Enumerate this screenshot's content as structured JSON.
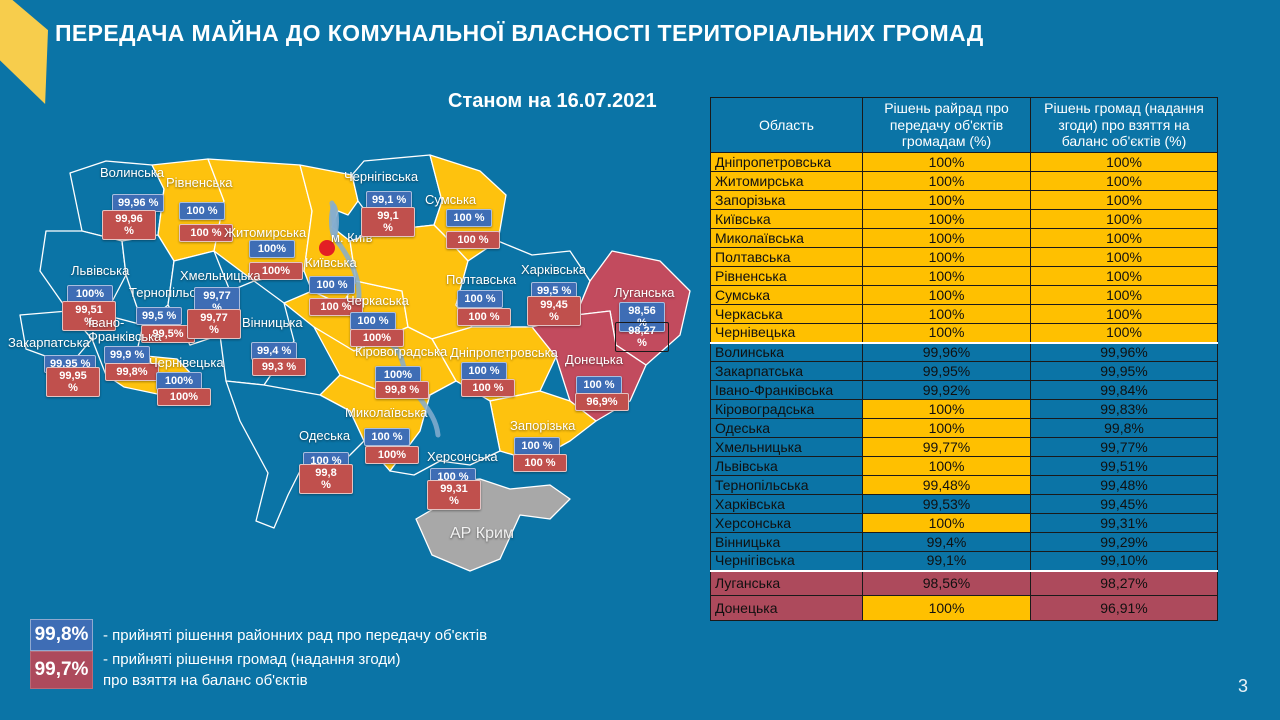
{
  "header": {
    "title": "ПЕРЕДАЧА МАЙНА ДО КОМУНАЛЬНОЇ ВЛАСНОСТІ ТЕРИТОРІАЛЬНИХ ГРОМАД",
    "date_label": "Станом на 16.07.2021"
  },
  "page_number": "3",
  "colors": {
    "background": "#0b74a6",
    "map_yellow": "#fec20e",
    "table_yellow": "#ffc000",
    "map_red": "#c24b5e",
    "table_red": "#ad4a5c",
    "badge_blue": "#3e6db5",
    "badge_red": "#c0504d",
    "crimea_gray": "#a8a8a8",
    "ribbon_yellow": "#f7cd4c",
    "river_blue": "#86aecf",
    "kyiv_dot_red": "#e31e24"
  },
  "legend": {
    "rada": {
      "value": "99,8%",
      "text": "- прийняті рішення районних рад про передачу об'єктів"
    },
    "hromada": {
      "value": "99,7%",
      "text": "- прийняті рішення громад (надання згоди)\nпро взяття на баланс об'єктів"
    }
  },
  "map": {
    "kyiv_city_label": "м. Київ",
    "regions": [
      {
        "id": "volyn",
        "label": "Волинська",
        "fill": "blue",
        "rada": "99,96 %",
        "hromada": "99,96\n%"
      },
      {
        "id": "rivne",
        "label": "Рівненська",
        "fill": "yellow",
        "rada": "100 %",
        "hromada": "100 %"
      },
      {
        "id": "zhytomyr",
        "label": "Житомирська",
        "fill": "yellow",
        "rada": "100%",
        "hromada": "100%"
      },
      {
        "id": "chernihiv",
        "label": "Чернігівська",
        "fill": "blue",
        "rada": "99,1 %",
        "hromada": "99,1\n%"
      },
      {
        "id": "sumy",
        "label": "Сумська",
        "fill": "yellow",
        "rada": "100 %",
        "hromada": "100 %"
      },
      {
        "id": "kyivska",
        "label": "Київська",
        "fill": "yellow",
        "rada": "100 %",
        "hromada": "100 %"
      },
      {
        "id": "lviv",
        "label": "Львівська",
        "fill": "blue",
        "rada": "100%",
        "hromada": "99,51\n%"
      },
      {
        "id": "ternopil",
        "label": "Тернопільська",
        "fill": "blue",
        "rada": "99,5 %",
        "hromada": "99,5%"
      },
      {
        "id": "khmelnytska",
        "label": "Хмельницька",
        "fill": "blue",
        "rada": "99,77\n%",
        "hromada": "99,77\n%"
      },
      {
        "id": "zakarpattia",
        "label": "Закарпатська",
        "fill": "blue",
        "rada": "99,95 %",
        "hromada": "99,95\n%"
      },
      {
        "id": "ivano",
        "label": "Івано-\nФранківська",
        "fill": "blue",
        "rada": "99,9 %",
        "hromada": "99,8%"
      },
      {
        "id": "chernivtsi",
        "label": "Чернівецька",
        "fill": "yellow",
        "rada": "100%",
        "hromada": "100%"
      },
      {
        "id": "vinnytsia",
        "label": "Вінницька",
        "fill": "blue",
        "rada": "99,4 %",
        "hromada": "99,3 %"
      },
      {
        "id": "cherkasy",
        "label": "Черкаська",
        "fill": "yellow",
        "rada": "100 %",
        "hromada": "100%"
      },
      {
        "id": "poltava",
        "label": "Полтавська",
        "fill": "yellow",
        "rada": "100 %",
        "hromada": "100 %"
      },
      {
        "id": "kharkiv",
        "label": "Харківська",
        "fill": "blue",
        "rada": "99,5 %",
        "hromada": "99,45\n%"
      },
      {
        "id": "luhansk",
        "label": "Луганська",
        "fill": "red",
        "rada": "98,56\n%",
        "hromada": "98,27\n%"
      },
      {
        "id": "donetsk",
        "label": "Донецька",
        "fill": "red",
        "rada": "100 %",
        "hromada": "96,9%"
      },
      {
        "id": "dnipro",
        "label": "Дніпропетровська",
        "fill": "yellow",
        "rada": "100 %",
        "hromada": "100 %"
      },
      {
        "id": "kirovohrad",
        "label": "Кіровоградська",
        "fill": "yellow",
        "rada": "100%",
        "hromada": "99,8 %"
      },
      {
        "id": "mykolaiv",
        "label": "Миколаївська",
        "fill": "yellow",
        "rada": "100 %",
        "hromada": "100%"
      },
      {
        "id": "zaporizhzhia",
        "label": "Запорізька",
        "fill": "yellow",
        "rada": "100 %",
        "hromada": "100 %"
      },
      {
        "id": "odesa",
        "label": "Одеська",
        "fill": "blue",
        "rada": "100 %",
        "hromada": "99,8\n%"
      },
      {
        "id": "kherson",
        "label": "Херсонська",
        "fill": "blue",
        "rada": "100 %",
        "hromada": "99,31\n%"
      },
      {
        "id": "crimea",
        "label": "АР Крим",
        "fill": "gray",
        "rada": null,
        "hromada": null
      }
    ]
  },
  "table": {
    "headers": [
      "Область",
      "Рішень райрад про передачу об'єктів громадам  (%)",
      "Рішень громад (надання згоди) про взяття на баланс об'єктів (%)"
    ],
    "rows": [
      {
        "region": "Дніпропетровська",
        "rada": "100%",
        "hromada": "100%",
        "tone": "yellow",
        "rada_cell_accent": false
      },
      {
        "region": "Житомирська",
        "rada": "100%",
        "hromada": "100%",
        "tone": "yellow",
        "rada_cell_accent": false
      },
      {
        "region": "Запорізька",
        "rada": "100%",
        "hromada": "100%",
        "tone": "yellow",
        "rada_cell_accent": false
      },
      {
        "region": "Київська",
        "rada": "100%",
        "hromada": "100%",
        "tone": "yellow",
        "rada_cell_accent": false
      },
      {
        "region": "Миколаївська",
        "rada": "100%",
        "hromada": "100%",
        "tone": "yellow",
        "rada_cell_accent": false
      },
      {
        "region": "Полтавська",
        "rada": "100%",
        "hromada": "100%",
        "tone": "yellow",
        "rada_cell_accent": false
      },
      {
        "region": "Рівненська",
        "rada": "100%",
        "hromada": "100%",
        "tone": "yellow",
        "rada_cell_accent": false
      },
      {
        "region": "Сумська",
        "rada": "100%",
        "hromada": "100%",
        "tone": "yellow",
        "rada_cell_accent": false
      },
      {
        "region": "Черкаська",
        "rada": "100%",
        "hromada": "100%",
        "tone": "yellow",
        "rada_cell_accent": false
      },
      {
        "region": "Чернівецька",
        "rada": "100%",
        "hromada": "100%",
        "tone": "yellow",
        "rada_cell_accent": false
      },
      {
        "region": "Волинська",
        "rada": "99,96%",
        "hromada": "99,96%",
        "tone": "blue",
        "rada_cell_accent": false
      },
      {
        "region": "Закарпатська",
        "rada": "99,95%",
        "hromada": "99,95%",
        "tone": "blue",
        "rada_cell_accent": false
      },
      {
        "region": "Івано-Франківська",
        "rada": "99,92%",
        "hromada": "99,84%",
        "tone": "blue",
        "rada_cell_accent": false
      },
      {
        "region": "Кіровоградська",
        "rada": "100%",
        "hromada": "99,83%",
        "tone": "blue",
        "rada_cell_accent": true
      },
      {
        "region": "Одеська",
        "rada": "100%",
        "hromada": "99,8%",
        "tone": "blue",
        "rada_cell_accent": true
      },
      {
        "region": "Хмельницька",
        "rada": "99,77%",
        "hromada": "99,77%",
        "tone": "blue",
        "rada_cell_accent": true
      },
      {
        "region": "Львівська",
        "rada": "100%",
        "hromada": "99,51%",
        "tone": "blue",
        "rada_cell_accent": true
      },
      {
        "region": "Тернопільська",
        "rada": "99,48%",
        "hromada": "99,48%",
        "tone": "blue",
        "rada_cell_accent": true
      },
      {
        "region": "Харківська",
        "rada": "99,53%",
        "hromada": "99,45%",
        "tone": "blue",
        "rada_cell_accent": false
      },
      {
        "region": "Херсонська",
        "rada": "100%",
        "hromada": "99,31%",
        "tone": "blue",
        "rada_cell_accent": true
      },
      {
        "region": "Вінницька",
        "rada": "99,4%",
        "hromada": "99,29%",
        "tone": "blue",
        "rada_cell_accent": false
      },
      {
        "region": "Чернігівська",
        "rada": "99,1%",
        "hromada": "99,10%",
        "tone": "blue",
        "rada_cell_accent": false
      },
      {
        "region": "Луганська",
        "rada": "98,56%",
        "hromada": "98,27%",
        "tone": "red",
        "rada_cell_accent": false
      },
      {
        "region": "Донецька",
        "rada": "100%",
        "hromada": "96,91%",
        "tone": "red",
        "rada_cell_accent": true
      }
    ]
  }
}
